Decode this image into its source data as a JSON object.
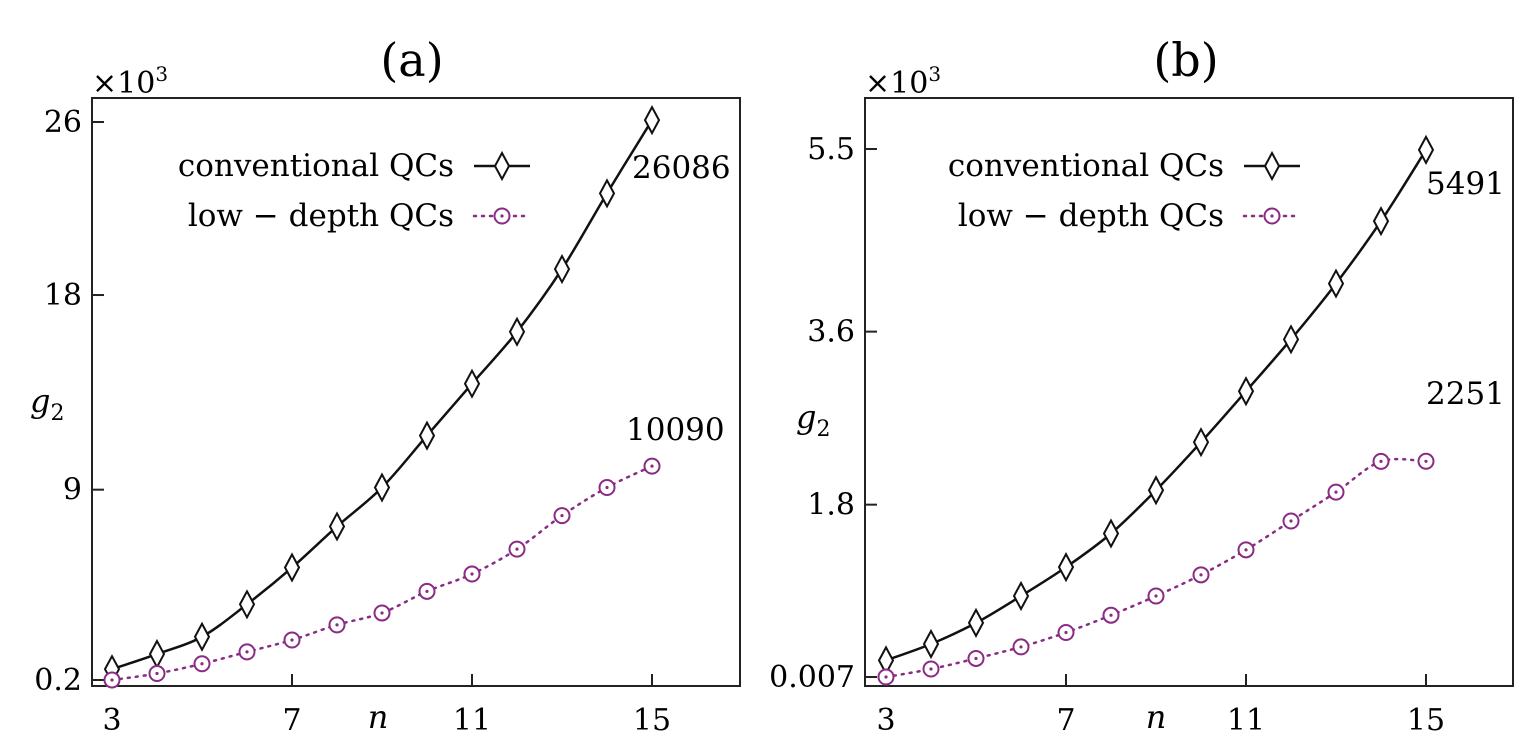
{
  "chart_data": [
    {
      "type": "line",
      "title": "(a)",
      "xlabel": "n",
      "ylabel": "g2",
      "y_multiplier_label": "×10",
      "y_multiplier_exp": "3",
      "xlim": [
        3,
        17
      ],
      "ylim": [
        0.2,
        27
      ],
      "x_ticks": [
        3,
        7,
        11,
        15
      ],
      "y_ticks": [
        0.2,
        9,
        18,
        26
      ],
      "y_tick_labels": [
        "0.2",
        "9",
        "18",
        "26"
      ],
      "legend": "top-left",
      "x": [
        3,
        4,
        5,
        6,
        7,
        8,
        9,
        10,
        11,
        12,
        13,
        14,
        15
      ],
      "series": [
        {
          "name": "conventional QCs",
          "marker": "diamond",
          "line": "solid",
          "color": "#111111",
          "values": [
            0.7,
            1.4,
            2.2,
            3.7,
            5.4,
            7.3,
            9.1,
            11.5,
            13.9,
            16.3,
            19.2,
            22.7,
            26.086
          ]
        },
        {
          "name": "low − depth QCs",
          "marker": "circle",
          "line": "dotted",
          "color": "#8a2c84",
          "values": [
            0.2,
            0.5,
            0.95,
            1.5,
            2.05,
            2.75,
            3.3,
            4.3,
            5.1,
            6.25,
            7.8,
            9.1,
            10.09
          ]
        }
      ],
      "annotations": [
        {
          "text": "26086"
        },
        {
          "text": "10090"
        }
      ]
    },
    {
      "type": "line",
      "title": "(b)",
      "xlabel": "n",
      "ylabel": "g2",
      "y_multiplier_label": "×10",
      "y_multiplier_exp": "3",
      "xlim": [
        3,
        17
      ],
      "ylim": [
        0.007,
        5.8
      ],
      "x_ticks": [
        3,
        7,
        11,
        15
      ],
      "y_ticks": [
        0.007,
        1.8,
        3.6,
        5.5
      ],
      "y_tick_labels": [
        "0.007",
        "1.8",
        "3.6",
        "5.5"
      ],
      "legend": "top-left",
      "x": [
        3,
        4,
        5,
        6,
        7,
        8,
        9,
        10,
        11,
        12,
        13,
        14,
        15
      ],
      "series": [
        {
          "name": "conventional QCs",
          "marker": "diamond",
          "line": "solid",
          "color": "#111111",
          "values": [
            0.18,
            0.35,
            0.57,
            0.85,
            1.15,
            1.5,
            1.95,
            2.45,
            2.98,
            3.52,
            4.1,
            4.75,
            5.491
          ]
        },
        {
          "name": "low − depth QCs",
          "marker": "circle",
          "line": "dotted",
          "color": "#8a2c84",
          "values": [
            0.007,
            0.09,
            0.2,
            0.32,
            0.47,
            0.65,
            0.85,
            1.07,
            1.33,
            1.63,
            1.93,
            2.25,
            2.251
          ]
        }
      ],
      "annotations": [
        {
          "text": "5491"
        },
        {
          "text": "2251"
        }
      ]
    }
  ]
}
